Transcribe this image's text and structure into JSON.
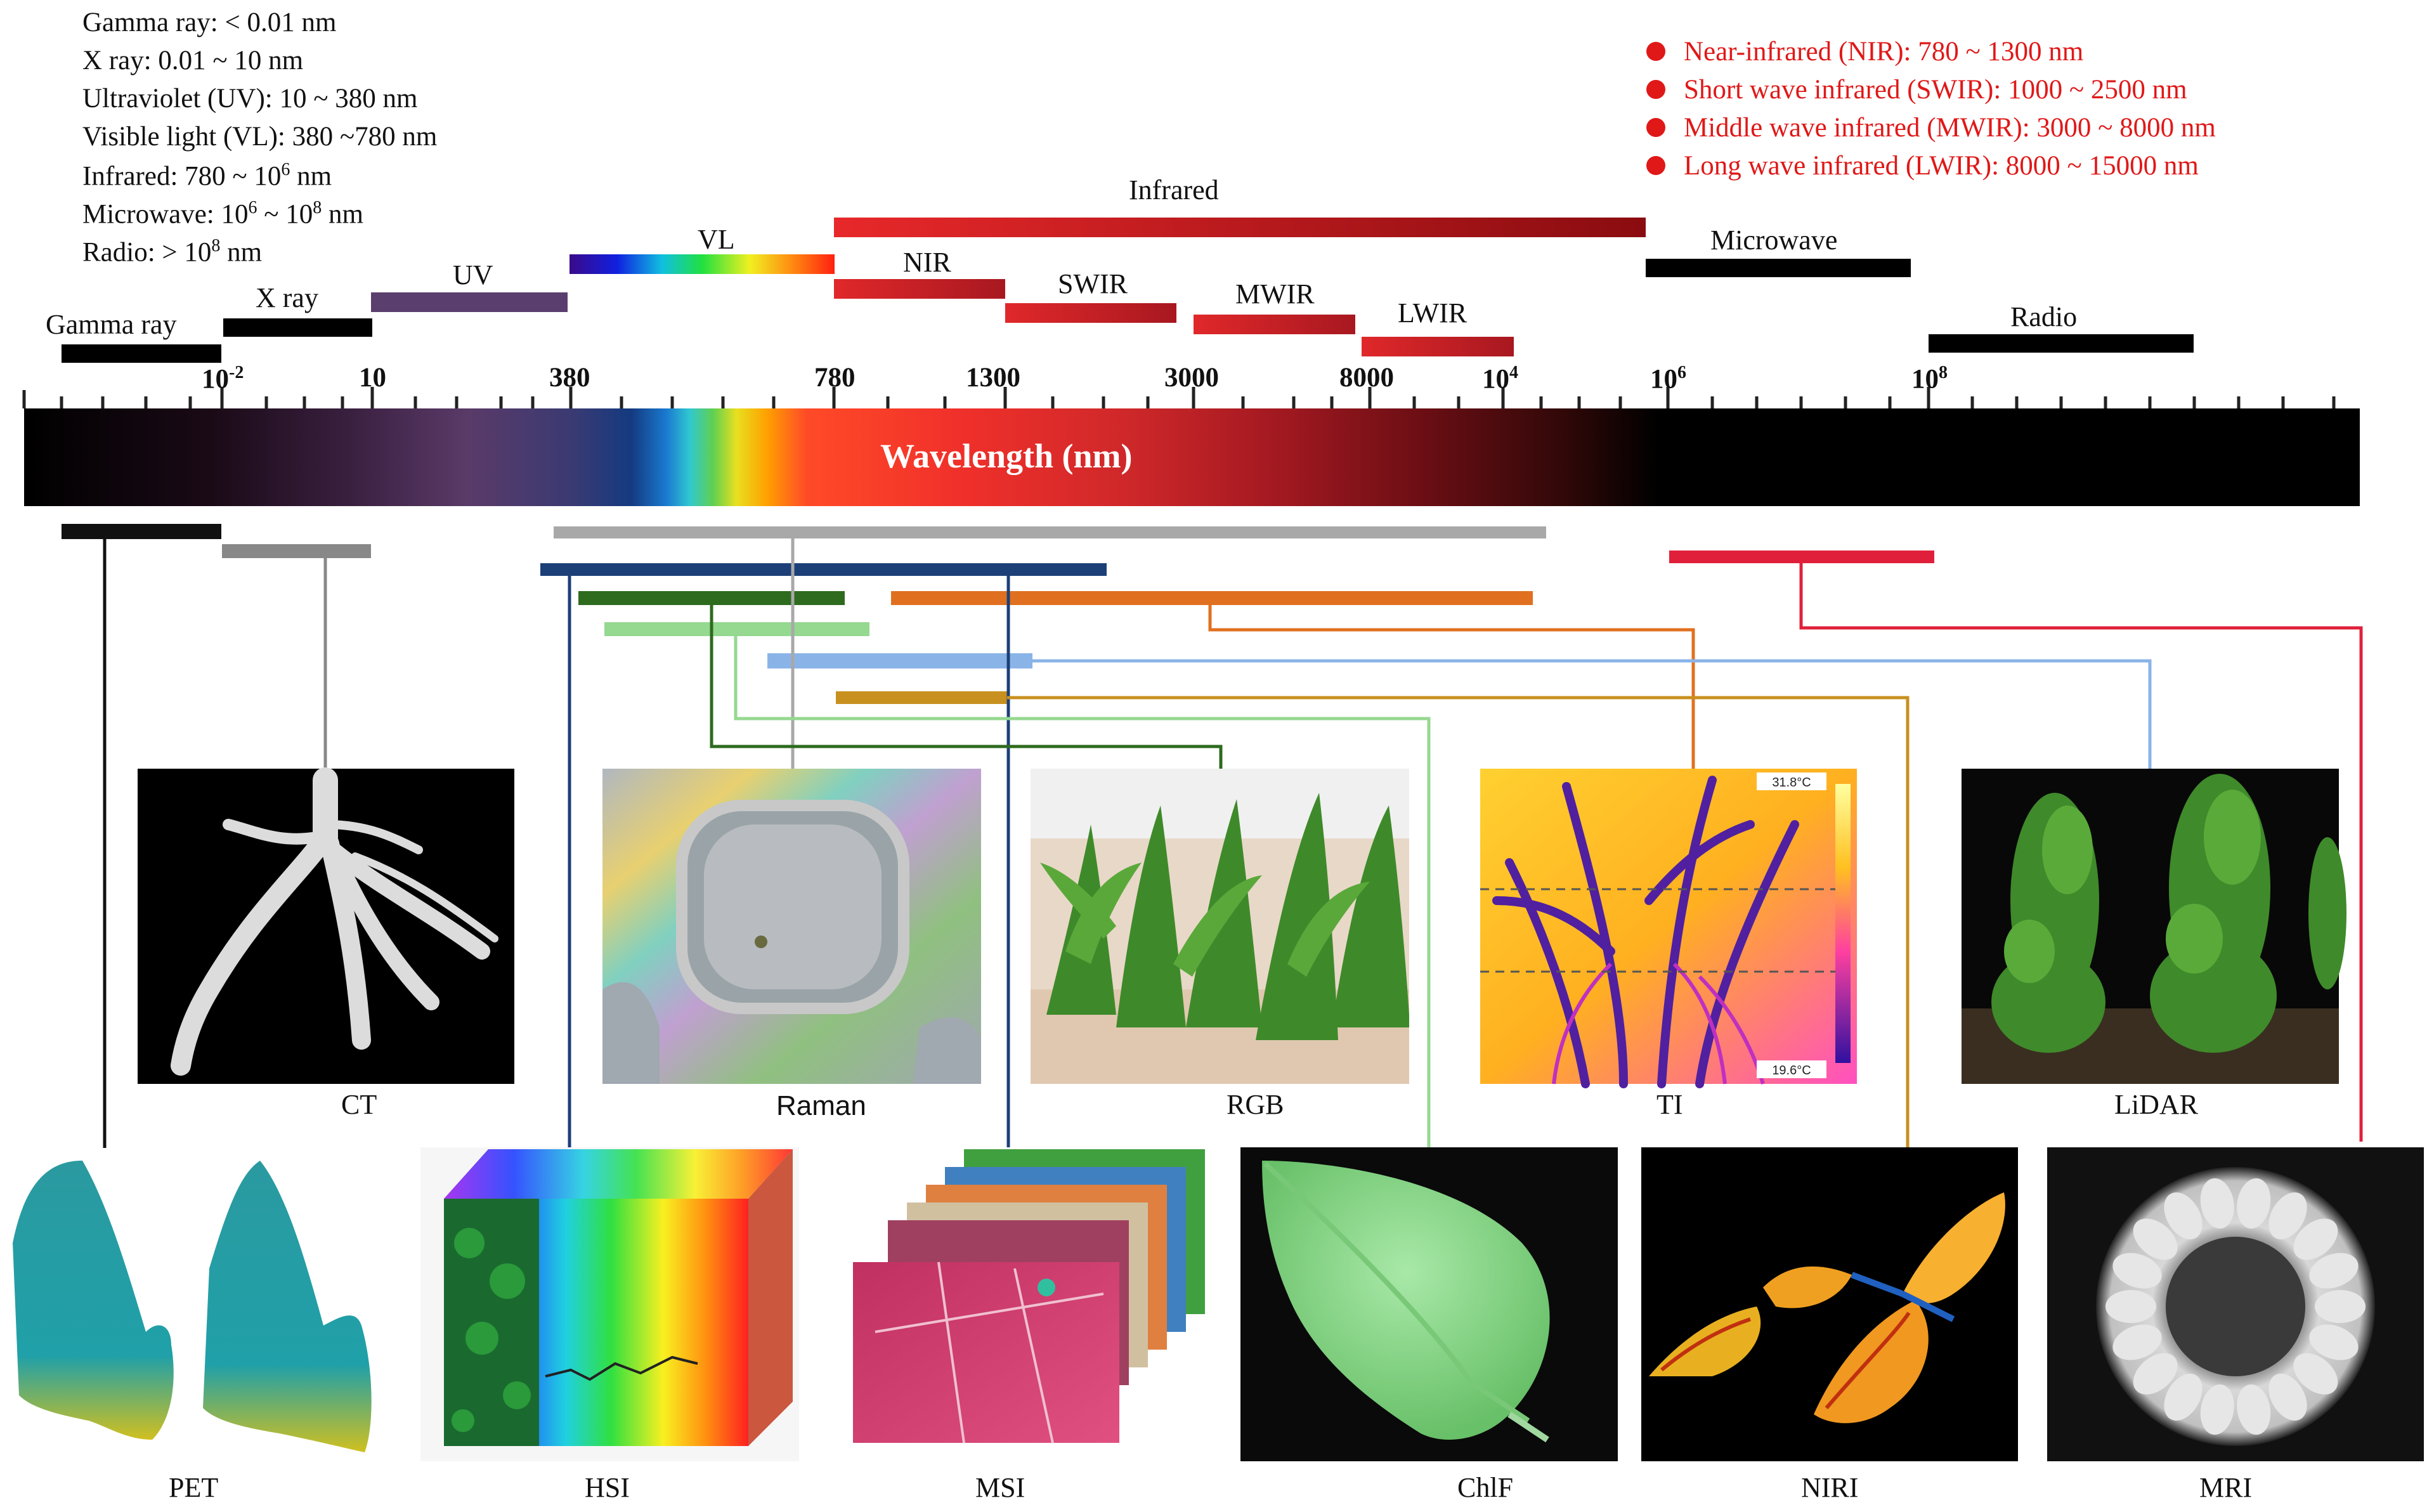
{
  "legend": {
    "gamma": "Gamma ray: < 0.01 nm",
    "xray": "X ray: 0.01 ~ 10 nm",
    "uv": "Ultraviolet (UV): 10 ~ 380 nm",
    "vl": "Visible light (VL): 380 ~780 nm",
    "ir_pre": "Infrared: 780 ~ 10",
    "ir_exp": "6",
    "ir_post": " nm",
    "mw_pre": "Microwave: 10",
    "mw_exp1": "6",
    "mw_mid": " ~ 10",
    "mw_exp2": "8",
    "mw_post": " nm",
    "radio_pre": "Radio: > 10",
    "radio_exp": "8",
    "radio_post": " nm"
  },
  "ir_legend": [
    "Near-infrared (NIR): 780 ~ 1300 nm",
    "Short wave infrared (SWIR): 1000 ~ 2500 nm",
    "Middle wave infrared (MWIR): 3000 ~ 8000 nm",
    "Long wave infrared (LWIR): 8000 ~ 15000 nm"
  ],
  "bands": {
    "gamma": "Gamma ray",
    "xray": "X ray",
    "uv": "UV",
    "vl": "VL",
    "infrared": "Infrared",
    "nir": "NIR",
    "swir": "SWIR",
    "mwir": "MWIR",
    "lwir": "LWIR",
    "microwave": "Microwave",
    "radio": "Radio"
  },
  "ticks": {
    "t1_base": "10",
    "t1_exp": "-2",
    "t2": "10",
    "t3": "380",
    "t4": "780",
    "t5": "1300",
    "t6": "3000",
    "t7": "8000",
    "t8_base": "10",
    "t8_exp": "4",
    "t9_base": "10",
    "t9_exp": "6",
    "t10_base": "10",
    "t10_exp": "8"
  },
  "axis_title": "Wavelength (nm)",
  "thermal": {
    "max": "31.8°C",
    "min": "19.6°C"
  },
  "captions": {
    "ct": "CT",
    "raman": "Raman",
    "rgb": "RGB",
    "ti": "TI",
    "lidar": "LiDAR",
    "pet": "PET",
    "hsi": "HSI",
    "msi": "MSI",
    "chif": "ChlF",
    "niri": "NIRI",
    "mri": "MRI"
  },
  "colors": {
    "pet": "#111111",
    "ct": "#888888",
    "raman": "#a8a8a8",
    "hsi_msi": "#1c3f78",
    "rgb": "#2e6b1e",
    "chif": "#95d890",
    "ti": "#e07020",
    "lidar": "#8ab4e8",
    "niri": "#c8901e",
    "mri": "#e0203a"
  }
}
